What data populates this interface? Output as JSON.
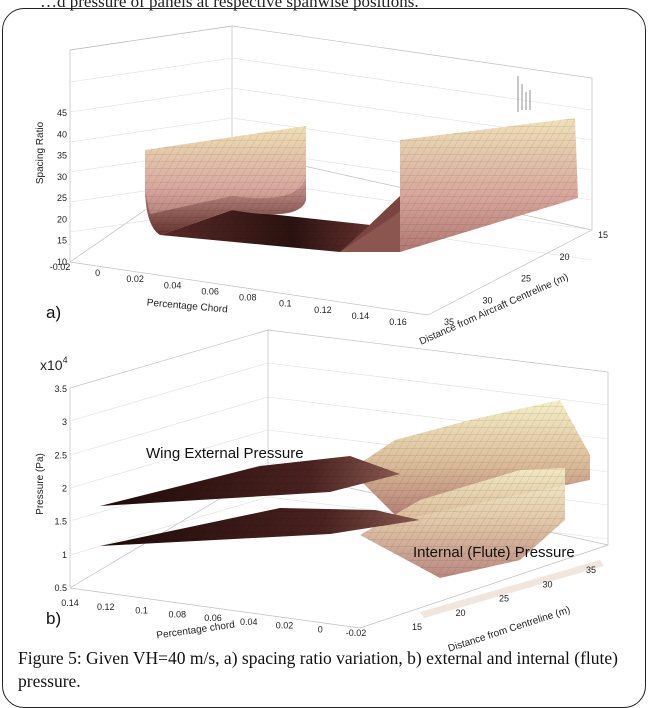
{
  "top_snippet": "…d pressure of panels at respective spanwise positions.",
  "caption": "Figure 5: Given VH=40 m/s, a) spacing ratio variation, b) external and internal (flute) pressure.",
  "chart_data": [
    {
      "type": "surface",
      "panel_label": "a)",
      "zlabel": "Spacing Ratio",
      "xlabel": "Percentage Chord",
      "ylabel": "Distance from Aircraft Centreline (m)",
      "z_ticks": [
        "10",
        "15",
        "20",
        "25",
        "30",
        "35",
        "40",
        "45"
      ],
      "x_ticks": [
        "-0.02",
        "0",
        "0.02",
        "0.04",
        "0.06",
        "0.08",
        "0.1",
        "0.12",
        "0.14",
        "0.16"
      ],
      "y_ticks": [
        "15",
        "20",
        "25",
        "30",
        "35"
      ],
      "zlim": [
        10,
        45
      ],
      "xlim": [
        -0.02,
        0.16
      ],
      "ylim": [
        15,
        35
      ],
      "colors": {
        "high": "#efe0b4",
        "mid": "#c88a86",
        "low": "#3a1a18"
      }
    },
    {
      "type": "surface",
      "panel_label": "b)",
      "exponent_label": "x10",
      "exponent": "4",
      "zlabel": "Pressure (Pa)",
      "xlabel": "Percentage chord",
      "ylabel": "Distance from Centreline (m)",
      "z_ticks": [
        "0.5",
        "1",
        "1.5",
        "2",
        "2.5",
        "3",
        "3.5"
      ],
      "x_ticks": [
        "0.14",
        "0.12",
        "0.1",
        "0.08",
        "0.06",
        "0.04",
        "0.02",
        "0",
        "-0.02"
      ],
      "y_ticks": [
        "15",
        "20",
        "25",
        "30",
        "35"
      ],
      "zlim": [
        0.5,
        3.5
      ],
      "xlim": [
        -0.02,
        0.14
      ],
      "ylim": [
        15,
        35
      ],
      "annotations": [
        "Wing External Pressure",
        "Internal (Flute) Pressure"
      ],
      "colors": {
        "high": "#f3ecbf",
        "mid": "#c98e84",
        "low": "#2a1010"
      }
    }
  ]
}
